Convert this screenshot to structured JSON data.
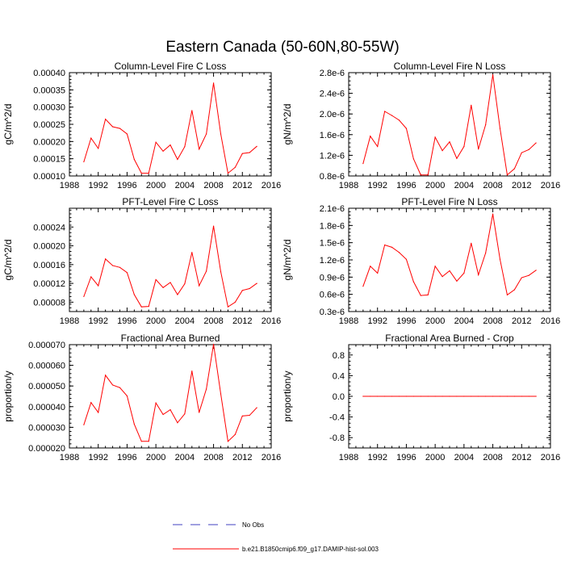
{
  "figure": {
    "title": "Eastern Canada (50-60N,80-55W)"
  },
  "legend": {
    "items": [
      {
        "label": "No Obs",
        "style": "dashed",
        "color": "#4040c0"
      },
      {
        "label": "b.e21.B1850cmip6.f09_g17.DAMIP-hist-sol.003",
        "style": "solid",
        "color": "#ff0000"
      }
    ]
  },
  "colors": {
    "series": "#ff0000",
    "axis": "#000000",
    "legend_dash": "#4040c0"
  },
  "chart_data": [
    {
      "type": "line",
      "title": "Column-Level Fire C Loss",
      "ylabel": "gC/m^2/d",
      "xlim": [
        1988,
        2016
      ],
      "ylim": [
        0.0001,
        0.0004
      ],
      "xticks": [
        1988,
        1992,
        1996,
        2000,
        2004,
        2008,
        2012,
        2016
      ],
      "yticks": [
        0.0001,
        0.00015,
        0.0002,
        0.00025,
        0.0003,
        0.00035,
        0.0004
      ],
      "yticklabels": [
        "0.00010",
        "0.00015",
        "0.00020",
        "0.00025",
        "0.00030",
        "0.00035",
        "0.00040"
      ],
      "series": [
        {
          "x": [
            1990,
            1991,
            1992,
            1993,
            1994,
            1995,
            1996,
            1997,
            1998,
            1999,
            2000,
            2001,
            2002,
            2003,
            2004,
            2005,
            2006,
            2007,
            2008,
            2009,
            2010,
            2011,
            2012,
            2013,
            2014
          ],
          "y": [
            0.000141,
            0.00021,
            0.00018,
            0.000265,
            0.000243,
            0.000238,
            0.000222,
            0.000148,
            0.000108,
            0.000108,
            0.000198,
            0.000172,
            0.00019,
            0.000148,
            0.000185,
            0.00029,
            0.000178,
            0.000222,
            0.00037,
            0.000222,
            0.000108,
            0.000125,
            0.000165,
            0.000168,
            0.000186
          ]
        }
      ]
    },
    {
      "type": "line",
      "title": "Column-Level Fire N Loss",
      "ylabel": "gN/m^2/d",
      "xlim": [
        1988,
        2016
      ],
      "ylim": [
        8e-07,
        2.8e-06
      ],
      "xticks": [
        1988,
        1992,
        1996,
        2000,
        2004,
        2008,
        2012,
        2016
      ],
      "yticks": [
        8e-07,
        1.2e-06,
        1.6e-06,
        2e-06,
        2.4e-06,
        2.8e-06
      ],
      "yticklabels": [
        "0.8e-6",
        "1.2e-6",
        "1.6e-6",
        "2.0e-6",
        "2.4e-6",
        "2.8e-6"
      ],
      "series": [
        {
          "x": [
            1990,
            1991,
            1992,
            1993,
            1994,
            1995,
            1996,
            1997,
            1998,
            1999,
            2000,
            2001,
            2002,
            2003,
            2004,
            2005,
            2006,
            2007,
            2008,
            2009,
            2010,
            2011,
            2012,
            2013,
            2014
          ],
          "y": [
            1.04e-06,
            1.57e-06,
            1.37e-06,
            2.05e-06,
            1.97e-06,
            1.88e-06,
            1.72e-06,
            1.13e-06,
            8.2e-07,
            8.2e-07,
            1.55e-06,
            1.29e-06,
            1.46e-06,
            1.14e-06,
            1.37e-06,
            2.17e-06,
            1.32e-06,
            1.79e-06,
            2.76e-06,
            1.72e-06,
            8.2e-07,
            9.4e-07,
            1.25e-06,
            1.31e-06,
            1.44e-06
          ]
        }
      ]
    },
    {
      "type": "line",
      "title": "PFT-Level Fire C Loss",
      "ylabel": "gC/m^2/d",
      "xlim": [
        1988,
        2016
      ],
      "ylim": [
        6e-05,
        0.00028
      ],
      "xticks": [
        1988,
        1992,
        1996,
        2000,
        2004,
        2008,
        2012,
        2016
      ],
      "yticks": [
        8e-05,
        0.00012,
        0.00016,
        0.0002,
        0.00024
      ],
      "yticklabels": [
        "0.00008",
        "0.00012",
        "0.00016",
        "0.00020",
        "0.00024"
      ],
      "series": [
        {
          "x": [
            1990,
            1991,
            1992,
            1993,
            1994,
            1995,
            1996,
            1997,
            1998,
            1999,
            2000,
            2001,
            2002,
            2003,
            2004,
            2005,
            2006,
            2007,
            2008,
            2009,
            2010,
            2011,
            2012,
            2013,
            2014
          ],
          "y": [
            9.2e-05,
            0.000134,
            0.000115,
            0.000172,
            0.000158,
            0.000154,
            0.000143,
            9.6e-05,
            7e-05,
            7.1e-05,
            0.000128,
            0.000111,
            0.000122,
            9.6e-05,
            0.000119,
            0.000186,
            0.000115,
            0.000146,
            0.000242,
            0.000145,
            7e-05,
            8e-05,
            0.000105,
            0.000109,
            0.00012
          ]
        }
      ]
    },
    {
      "type": "line",
      "title": "PFT-Level Fire N Loss",
      "ylabel": "gN/m^2/d",
      "xlim": [
        1988,
        2016
      ],
      "ylim": [
        3e-07,
        2.1e-06
      ],
      "xticks": [
        1988,
        1992,
        1996,
        2000,
        2004,
        2008,
        2012,
        2016
      ],
      "yticks": [
        3e-07,
        6e-07,
        9e-07,
        1.2e-06,
        1.5e-06,
        1.8e-06,
        2.1e-06
      ],
      "yticklabels": [
        "0.3e-6",
        "0.6e-6",
        "0.9e-6",
        "1.2e-6",
        "1.5e-6",
        "1.8e-6",
        "2.1e-6"
      ],
      "series": [
        {
          "x": [
            1990,
            1991,
            1992,
            1993,
            1994,
            1995,
            1996,
            1997,
            1998,
            1999,
            2000,
            2001,
            2002,
            2003,
            2004,
            2005,
            2006,
            2007,
            2008,
            2009,
            2010,
            2011,
            2012,
            2013,
            2014
          ],
          "y": [
            7.4e-07,
            1.09e-06,
            9.7e-07,
            1.46e-06,
            1.42e-06,
            1.33e-06,
            1.21e-06,
            8.2e-07,
            5.8e-07,
            5.9e-07,
            1.09e-06,
            9.1e-07,
            1.01e-06,
            8.3e-07,
            9.7e-07,
            1.49e-06,
            9.4e-07,
            1.32e-06,
            2e-06,
            1.21e-06,
            5.9e-07,
            6.8e-07,
            8.9e-07,
            9.3e-07,
            1.02e-06
          ]
        }
      ]
    },
    {
      "type": "line",
      "title": "Fractional Area Burned",
      "ylabel": "proportion/y",
      "xlim": [
        1988,
        2016
      ],
      "ylim": [
        2e-05,
        7e-05
      ],
      "xticks": [
        1988,
        1992,
        1996,
        2000,
        2004,
        2008,
        2012,
        2016
      ],
      "yticks": [
        2e-05,
        3e-05,
        4e-05,
        5e-05,
        6e-05,
        7e-05
      ],
      "yticklabels": [
        "0.000020",
        "0.000030",
        "0.000040",
        "0.000050",
        "0.000060",
        "0.000070"
      ],
      "series": [
        {
          "x": [
            1990,
            1991,
            1992,
            1993,
            1994,
            1995,
            1996,
            1997,
            1998,
            1999,
            2000,
            2001,
            2002,
            2003,
            2004,
            2005,
            2006,
            2007,
            2008,
            2009,
            2010,
            2011,
            2012,
            2013,
            2014
          ],
          "y": [
            3.12e-05,
            4.2e-05,
            3.72e-05,
            5.52e-05,
            5.05e-05,
            4.92e-05,
            4.52e-05,
            3.15e-05,
            2.32e-05,
            2.32e-05,
            4.18e-05,
            3.62e-05,
            3.85e-05,
            3.22e-05,
            3.65e-05,
            5.72e-05,
            3.72e-05,
            4.85e-05,
            7.02e-05,
            4.62e-05,
            2.32e-05,
            2.65e-05,
            3.55e-05,
            3.58e-05,
            3.95e-05
          ]
        }
      ]
    },
    {
      "type": "line",
      "title": "Fractional Area Burned - Crop",
      "ylabel": "proportion/y",
      "xlim": [
        1988,
        2016
      ],
      "ylim": [
        -1.0,
        1.0
      ],
      "xticks": [
        1988,
        1992,
        1996,
        2000,
        2004,
        2008,
        2012,
        2016
      ],
      "yticks": [
        -0.8,
        -0.4,
        0.0,
        0.4,
        0.8
      ],
      "yticklabels": [
        "-0.8",
        "-0.4",
        "0.0",
        "0.4",
        "0.8"
      ],
      "series": [
        {
          "x": [
            1990,
            1991,
            1992,
            1993,
            1994,
            1995,
            1996,
            1997,
            1998,
            1999,
            2000,
            2001,
            2002,
            2003,
            2004,
            2005,
            2006,
            2007,
            2008,
            2009,
            2010,
            2011,
            2012,
            2013,
            2014
          ],
          "y": [
            0,
            0,
            0,
            0,
            0,
            0,
            0,
            0,
            0,
            0,
            0,
            0,
            0,
            0,
            0,
            0,
            0,
            0,
            0,
            0,
            0,
            0,
            0,
            0,
            0
          ]
        }
      ]
    }
  ]
}
